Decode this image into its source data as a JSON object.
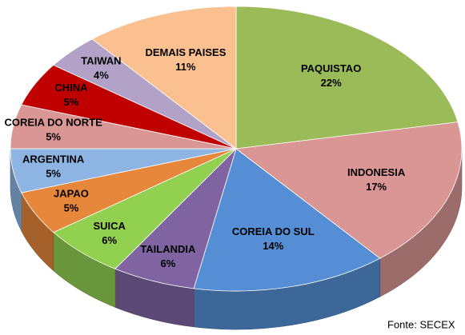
{
  "chart_data": {
    "type": "pie3d",
    "categories": [
      "PAQUISTAO",
      "INDONESIA",
      "COREIA DO SUL",
      "TAILANDIA",
      "SUICA",
      "JAPAO",
      "ARGENTINA",
      "COREIA DO NORTE",
      "CHINA",
      "TAIWAN",
      "DEMAIS PAISES"
    ],
    "values": [
      22,
      17,
      14,
      6,
      6,
      5,
      5,
      5,
      5,
      4,
      11
    ],
    "value_labels": [
      "22%",
      "17%",
      "14%",
      "6%",
      "6%",
      "5%",
      "5%",
      "5%",
      "5%",
      "4%",
      "11%"
    ],
    "colors": [
      "#9bbb59",
      "#d99694",
      "#558ed5",
      "#8064a2",
      "#92d050",
      "#e6873c",
      "#8eb4e3",
      "#d99694",
      "#c00000",
      "#b3a2c7",
      "#fac090"
    ],
    "source": "Fonte: SECEX"
  }
}
